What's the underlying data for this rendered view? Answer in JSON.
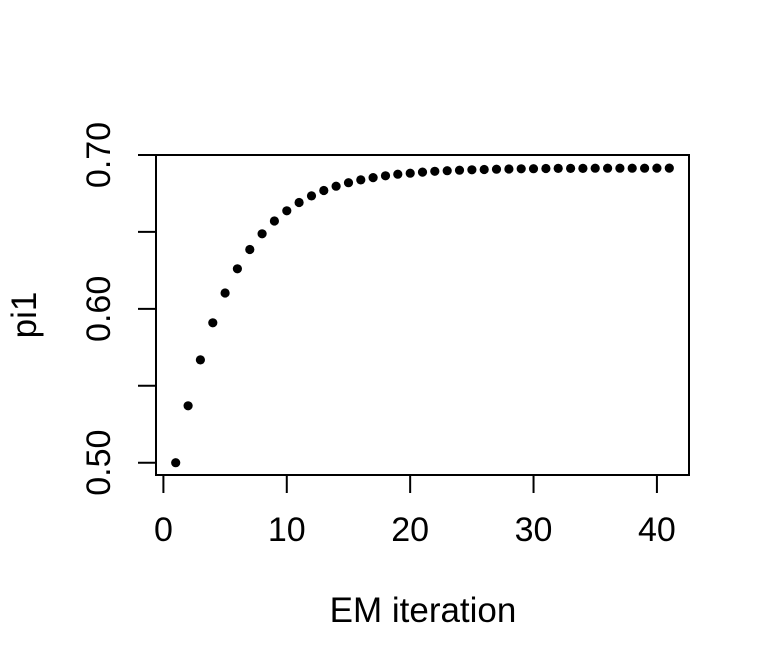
{
  "figure": {
    "background": "#ffffff",
    "axis_color": "#000000",
    "point_color": "#000000"
  },
  "chart_data": {
    "type": "scatter",
    "title": "",
    "xlabel": "EM iteration",
    "ylabel": "pi1",
    "grid": false,
    "legend": null,
    "marker": "filled-circle",
    "xlim": [
      -0.6,
      42.6
    ],
    "ylim": [
      0.492,
      0.7
    ],
    "x_ticks": {
      "values": [
        0,
        10,
        20,
        30,
        40
      ],
      "labels": [
        "0",
        "10",
        "20",
        "30",
        "40"
      ]
    },
    "y_ticks": {
      "values": [
        0.5,
        0.55,
        0.6,
        0.65,
        0.7
      ],
      "labels": [
        "0.50",
        "",
        "0.60",
        "",
        "0.70"
      ]
    },
    "series": [
      {
        "name": "pi1",
        "x": [
          1,
          2,
          3,
          4,
          5,
          6,
          7,
          8,
          9,
          10,
          11,
          12,
          13,
          14,
          15,
          16,
          17,
          18,
          19,
          20,
          21,
          22,
          23,
          24,
          25,
          26,
          27,
          28,
          29,
          30,
          31,
          32,
          33,
          34,
          35,
          36,
          37,
          38,
          39,
          40,
          41
        ],
        "y": [
          0.5,
          0.537,
          0.5668,
          0.5909,
          0.6103,
          0.626,
          0.6386,
          0.6488,
          0.6571,
          0.6637,
          0.6691,
          0.6734,
          0.6769,
          0.6797,
          0.682,
          0.6838,
          0.6853,
          0.6865,
          0.6875,
          0.6882,
          0.6889,
          0.6894,
          0.6898,
          0.6901,
          0.6904,
          0.6906,
          0.6908,
          0.6909,
          0.691,
          0.6911,
          0.6912,
          0.6913,
          0.6913,
          0.6913,
          0.6914,
          0.6914,
          0.6914,
          0.6914,
          0.6914,
          0.6915,
          0.6915
        ]
      }
    ]
  }
}
